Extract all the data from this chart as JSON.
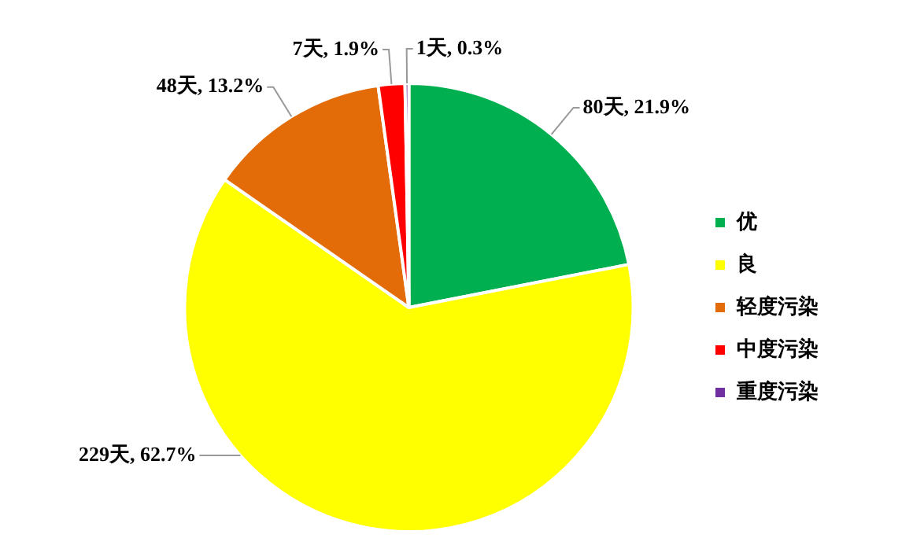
{
  "chart_data": {
    "type": "pie",
    "categories": [
      "优",
      "良",
      "轻度污染",
      "中度污染",
      "重度污染"
    ],
    "values": [
      80,
      229,
      48,
      7,
      1
    ],
    "colors": [
      "#00b050",
      "#ffff00",
      "#e36c09",
      "#ff0000",
      "#7030a0"
    ],
    "value_labels": [
      "80天, 21.9%",
      "229天, 62.7%",
      "48天, 13.2%",
      "7天, 1.9%",
      "1天, 0.3%"
    ],
    "legend": "right"
  }
}
